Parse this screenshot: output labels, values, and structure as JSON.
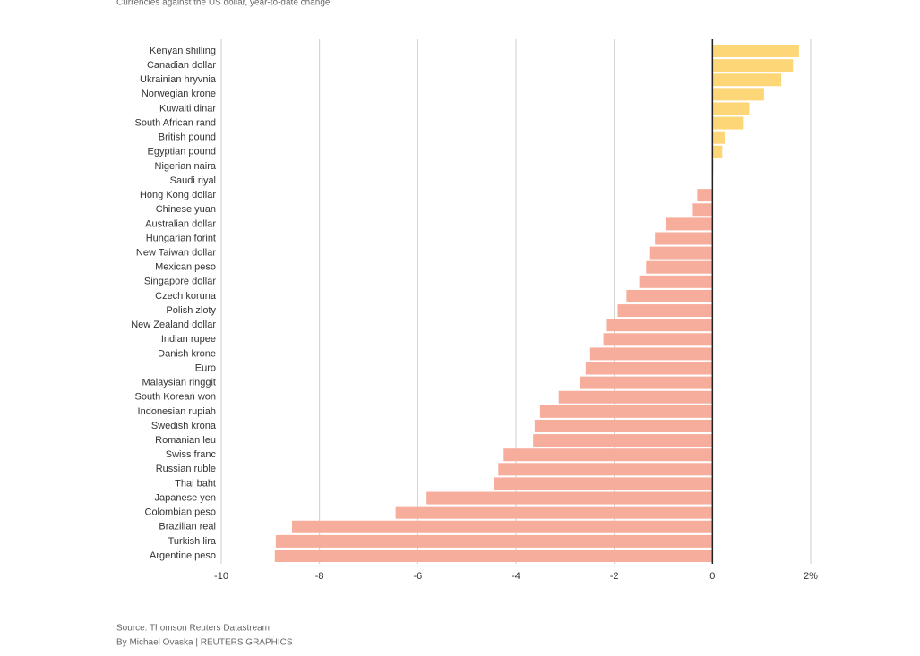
{
  "chart_data": {
    "type": "bar",
    "orientation": "horizontal",
    "subtitle": "Currencies against the US dollar, year-to-date change",
    "categories": [
      "Kenyan shilling",
      "Canadian dollar",
      "Ukrainian hryvnia",
      "Norwegian krone",
      "Kuwaiti dinar",
      "South African rand",
      "British pound",
      "Egyptian pound",
      "Nigerian naira",
      "Saudi riyal",
      "Hong Kong dollar",
      "Chinese yuan",
      "Australian dollar",
      "Hungarian forint",
      "New Taiwan dollar",
      "Mexican peso",
      "Singapore dollar",
      "Czech koruna",
      "Polish zloty",
      "New Zealand dollar",
      "Indian rupee",
      "Danish krone",
      "Euro",
      "Malaysian ringgit",
      "South Korean won",
      "Indonesian rupiah",
      "Swedish krona",
      "Romanian leu",
      "Swiss franc",
      "Russian ruble",
      "Thai baht",
      "Japanese yen",
      "Colombian peso",
      "Brazilian real",
      "Turkish lira",
      "Argentine peso"
    ],
    "values": [
      1.76,
      1.64,
      1.4,
      1.05,
      0.75,
      0.62,
      0.25,
      0.2,
      0.02,
      0,
      -0.31,
      -0.4,
      -0.95,
      -1.17,
      -1.27,
      -1.35,
      -1.49,
      -1.75,
      -1.93,
      -2.15,
      -2.22,
      -2.49,
      -2.58,
      -2.69,
      -3.13,
      -3.51,
      -3.62,
      -3.65,
      -4.25,
      -4.36,
      -4.45,
      -5.82,
      -6.45,
      -8.56,
      -8.89,
      -8.91
    ],
    "positive_color": "#fdd677",
    "negative_color": "#f7ad9c",
    "xlim": [
      -10,
      2
    ],
    "xticks": [
      -10,
      -8,
      -6,
      -4,
      -2,
      0,
      {
        "value": 2,
        "label": "2%"
      }
    ],
    "grid": true,
    "source": "Source: Thomson Reuters Datastream",
    "byline": "By Michael Ovaska | REUTERS GRAPHICS"
  }
}
